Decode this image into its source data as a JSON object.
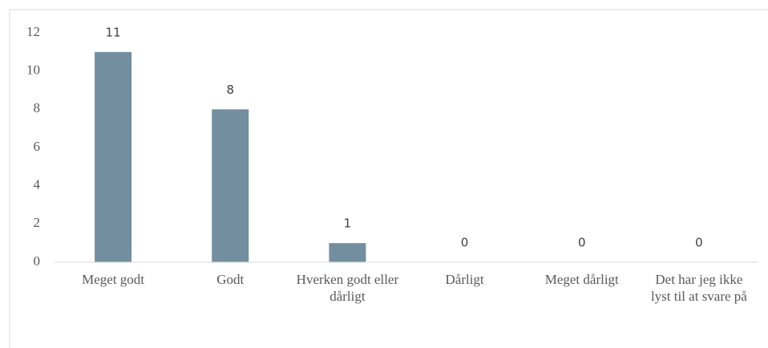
{
  "chart_data": {
    "type": "bar",
    "categories": [
      "Meget godt",
      "Godt",
      "Hverken godt eller dårligt",
      "Dårligt",
      "Meget dårligt",
      "Det har jeg ikke lyst til at svare på"
    ],
    "values": [
      11,
      8,
      1,
      0,
      0,
      0
    ],
    "color": "#738f9f",
    "ylim": [
      0,
      12
    ],
    "yticks": [
      0,
      2,
      4,
      6,
      8,
      10,
      12
    ],
    "grid": false
  }
}
